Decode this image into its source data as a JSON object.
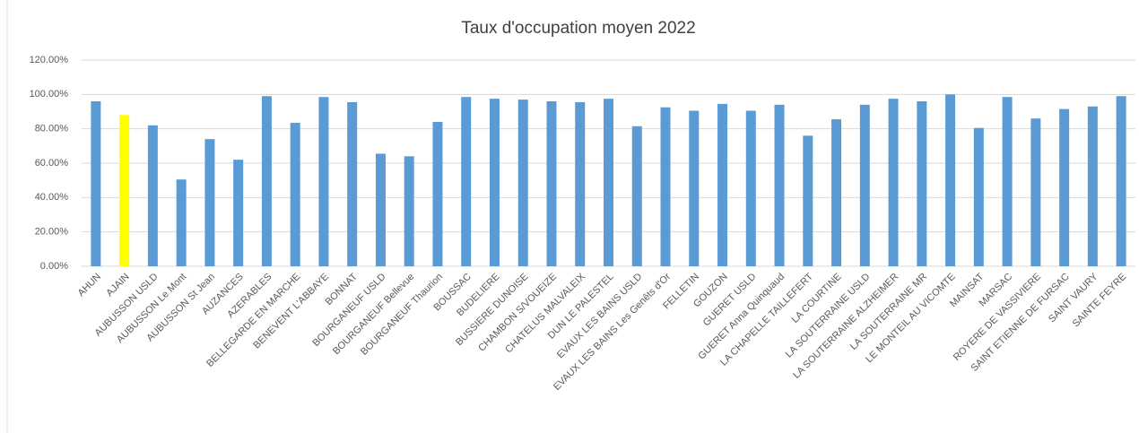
{
  "chart_data": {
    "type": "bar",
    "title": "Taux d'occupation moyen 2022",
    "categories": [
      "AHUN",
      "AJAIN",
      "AUBUSSON USLD",
      "AUBUSSON Le Mont",
      "AUBUSSON St Jean",
      "AUZANCES",
      "AZERABLES",
      "BELLEGARDE EN MARCHE",
      "BENEVENT L'ABBAYE",
      "BONNAT",
      "BOURGANEUF USLD",
      "BOURGANEUF Bellevue",
      "BOURGANEUF Thaurion",
      "BOUSSAC",
      "BUDELIERE",
      "BUSSIERE DUNOISE",
      "CHAMBON S/VOUEIZE",
      "CHATELUS MALVALEIX",
      "DUN LE PALESTEL",
      "EVAUX LES BAINS USLD",
      "EVAUX LES BAINS Les Genêts d'Or",
      "FELLETIN",
      "GOUZON",
      "GUERET USLD",
      "GUERET Anna Quinquaud",
      "LA CHAPELLE TAILLEFERT",
      "LA COURTINE",
      "LA SOUTERRAINE USLD",
      "LA SOUTERRAINE ALZHEIMER",
      "LA SOUTERRAINE MR",
      "LE MONTEIL AU VICOMTE",
      "MAINSAT",
      "MARSAC",
      "ROYERE DE VASSIVIERE",
      "SAINT ETIENNE DE FURSAC",
      "SAINT VAURY",
      "SAINTE FEYRE"
    ],
    "values": [
      96,
      88,
      82,
      50.5,
      74,
      62,
      99,
      83.5,
      98.5,
      95.5,
      65.5,
      64,
      84,
      98.5,
      97.5,
      97,
      96,
      95.5,
      97.5,
      81.5,
      92.5,
      90.5,
      94.5,
      90.5,
      94,
      76,
      85.5,
      94,
      97.5,
      96,
      100,
      80.5,
      98.5,
      86,
      91.5,
      93,
      99
    ],
    "colors": [
      "#5b9bd5",
      "#ffff00",
      "#5b9bd5",
      "#5b9bd5",
      "#5b9bd5",
      "#5b9bd5",
      "#5b9bd5",
      "#5b9bd5",
      "#5b9bd5",
      "#5b9bd5",
      "#5b9bd5",
      "#5b9bd5",
      "#5b9bd5",
      "#5b9bd5",
      "#5b9bd5",
      "#5b9bd5",
      "#5b9bd5",
      "#5b9bd5",
      "#5b9bd5",
      "#5b9bd5",
      "#5b9bd5",
      "#5b9bd5",
      "#5b9bd5",
      "#5b9bd5",
      "#5b9bd5",
      "#5b9bd5",
      "#5b9bd5",
      "#5b9bd5",
      "#5b9bd5",
      "#5b9bd5",
      "#5b9bd5",
      "#5b9bd5",
      "#5b9bd5",
      "#5b9bd5",
      "#5b9bd5",
      "#5b9bd5",
      "#5b9bd5"
    ],
    "ylim": [
      0,
      120
    ],
    "yticks": [
      {
        "value": 0,
        "label": "0.00%"
      },
      {
        "value": 20,
        "label": "20.00%"
      },
      {
        "value": 40,
        "label": "40.00%"
      },
      {
        "value": 60,
        "label": "60.00%"
      },
      {
        "value": 80,
        "label": "80.00%"
      },
      {
        "value": 100,
        "label": "100.00%"
      },
      {
        "value": 120,
        "label": "120.00%"
      }
    ],
    "grid": true
  }
}
